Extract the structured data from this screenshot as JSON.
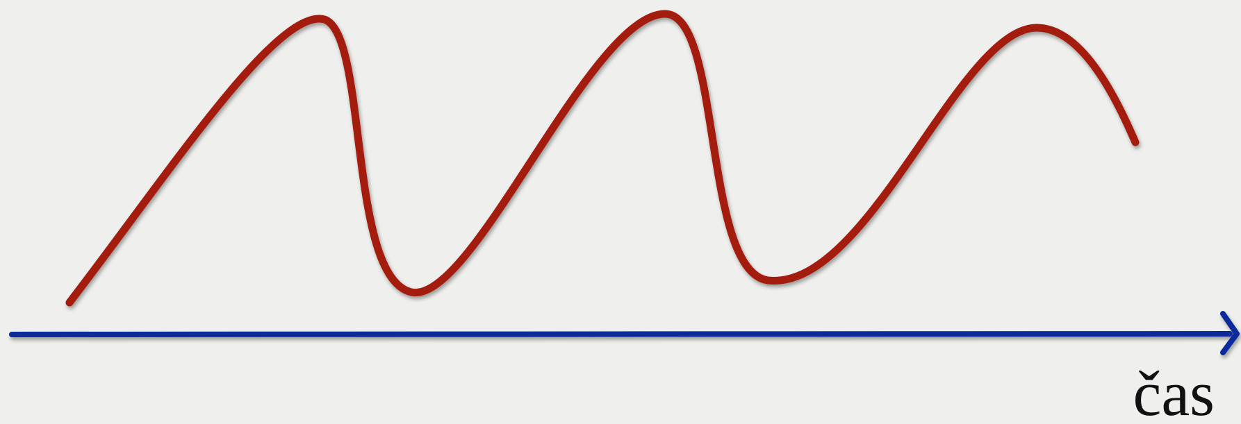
{
  "axis": {
    "label": "čas"
  }
}
